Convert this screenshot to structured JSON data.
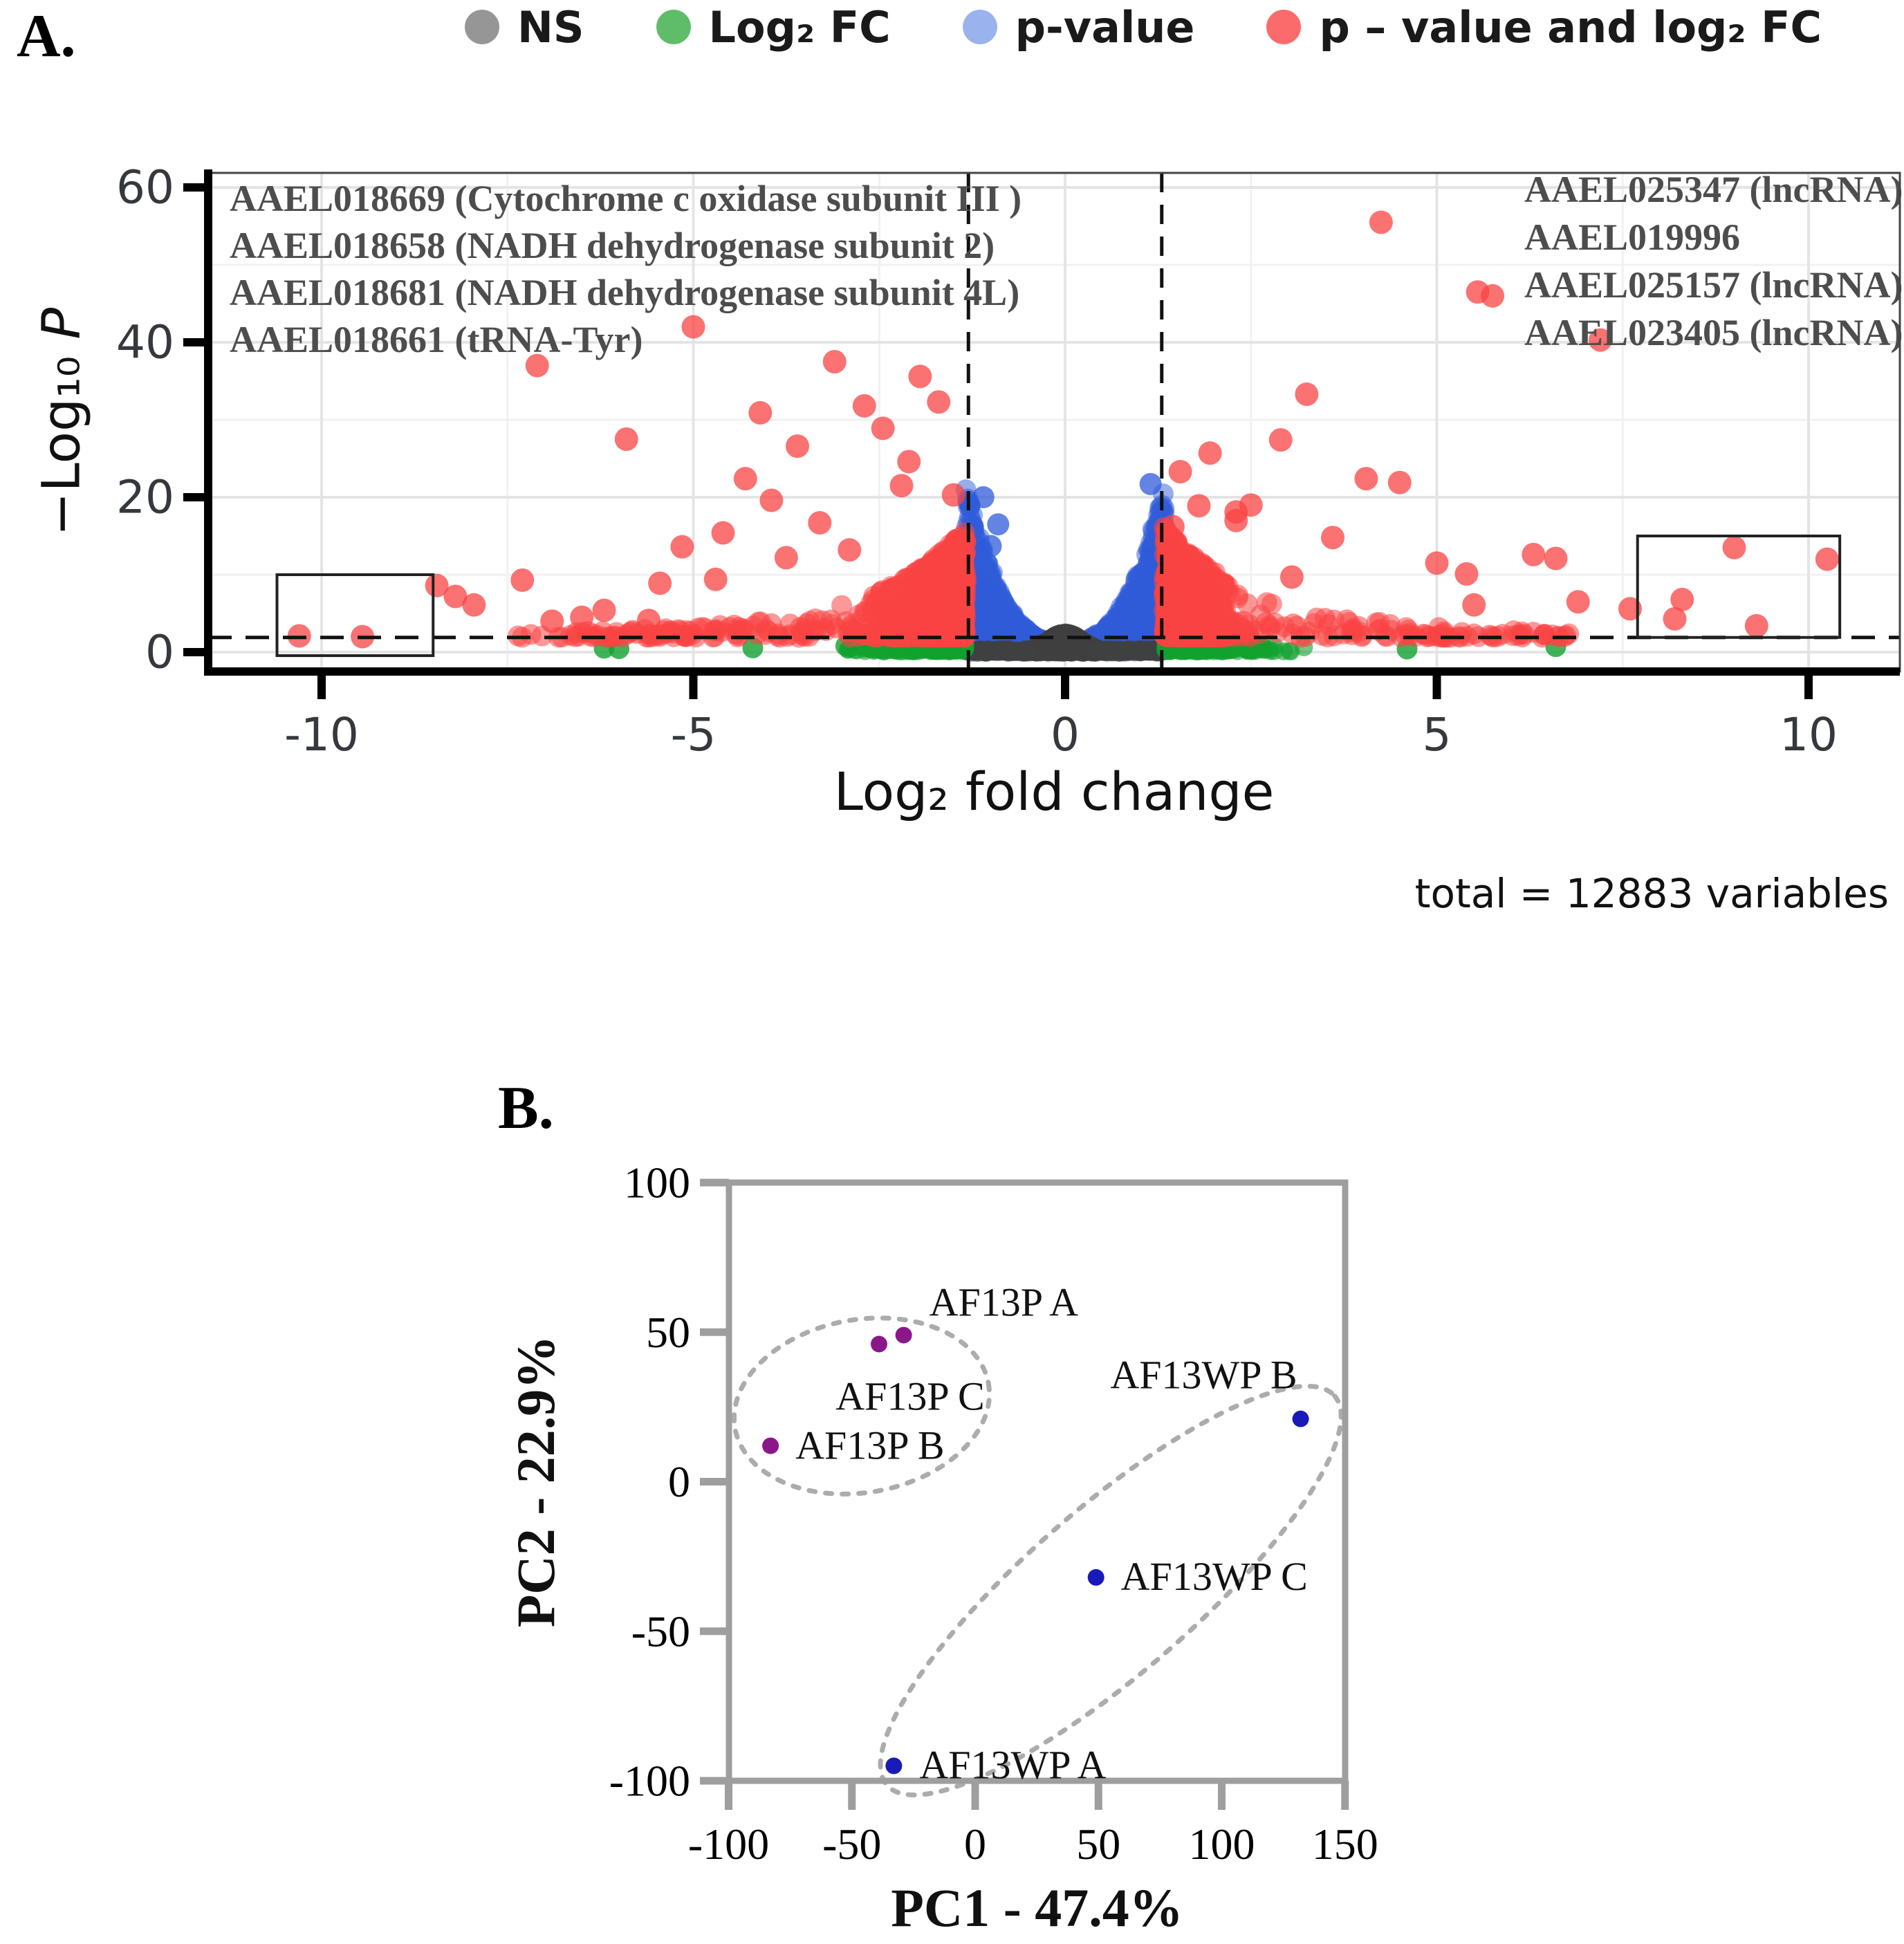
{
  "figure": {
    "background": "#ffffff"
  },
  "panel_a": {
    "label": "A."
  },
  "panel_b": {
    "label": "B."
  },
  "chart_data": [
    {
      "id": "volcano",
      "type": "scatter",
      "xlabel": "Log₂ fold change",
      "ylabel_main": "−Log₁₀ ",
      "ylabel_italic": "P",
      "caption": "total = 12883 variables",
      "xlim": [
        -11.5,
        11.2
      ],
      "ylim": [
        -2.5,
        61.9
      ],
      "x_ticks": [
        -10,
        -5,
        0,
        5,
        10
      ],
      "y_ticks": [
        0,
        20,
        40,
        60
      ],
      "grid": true,
      "legend": [
        {
          "label": "NS",
          "color": "#969696"
        },
        {
          "label": "Log₂ FC",
          "color": "#5FBD69"
        },
        {
          "label": "p-value",
          "color": "#9AB3EE"
        },
        {
          "label": "p – value and log₂ FC",
          "color": "#FB6B6B"
        }
      ],
      "colors": {
        "ns": "#3F3F3F",
        "log2fc": "#12A12F",
        "pvalue": "#2F5BDA",
        "both": "#F94343"
      },
      "thresholds": {
        "vlines": [
          -1.3,
          1.3
        ],
        "hline": 1.9,
        "style": "dashed"
      },
      "highlight_boxes": [
        {
          "x1": -10.6,
          "x2": -8.5,
          "y1": -0.45,
          "y2": 10
        },
        {
          "x1": 7.7,
          "x2": 10.42,
          "y1": 1.9,
          "y2": 15
        }
      ],
      "annotations_left": [
        "AAEL018669 (Cytochrome c oxidase subunit III )",
        "AAEL018658 (NADH dehydrogenase subunit 2)",
        "AAEL018681 (NADH dehydrogenase subunit 4L)",
        "AAEL018661 (tRNA-Tyr)"
      ],
      "annotations_right": [
        "AAEL025347 (lncRNA)",
        "AAEL019996",
        "AAEL025157 (lncRNA)",
        "AAEL023405 (lncRNA)"
      ],
      "outliers": {
        "both_left": [
          [
            -10.3,
            2.1
          ],
          [
            -9.45,
            2.0
          ],
          [
            -8.45,
            8.6
          ],
          [
            -8.2,
            7.2
          ],
          [
            -7.95,
            6.1
          ],
          [
            -7.3,
            9.3
          ],
          [
            -7.1,
            37.0
          ],
          [
            -6.9,
            4.0
          ],
          [
            -6.5,
            4.5
          ],
          [
            -6.2,
            5.4
          ],
          [
            -5.9,
            27.5
          ],
          [
            -5.6,
            4.1
          ],
          [
            -5.45,
            8.9
          ],
          [
            -5.15,
            13.6
          ],
          [
            -5.0,
            42.0
          ],
          [
            -4.7,
            9.4
          ],
          [
            -4.6,
            15.4
          ],
          [
            -4.3,
            22.4
          ],
          [
            -4.1,
            30.9
          ],
          [
            -3.95,
            19.6
          ],
          [
            -3.75,
            12.2
          ],
          [
            -3.6,
            26.6
          ],
          [
            -3.3,
            16.7
          ],
          [
            -3.1,
            37.5
          ],
          [
            -2.9,
            13.2
          ],
          [
            -2.7,
            31.8
          ],
          [
            -2.45,
            28.9
          ],
          [
            -2.2,
            21.5
          ],
          [
            -2.1,
            24.6
          ],
          [
            -1.95,
            35.6
          ],
          [
            -1.7,
            32.3
          ],
          [
            -1.5,
            20.3
          ]
        ],
        "both_right": [
          [
            1.45,
            16.2
          ],
          [
            1.55,
            23.3
          ],
          [
            1.8,
            18.9
          ],
          [
            1.95,
            25.7
          ],
          [
            2.3,
            18.1
          ],
          [
            2.3,
            17.0
          ],
          [
            2.5,
            19.0
          ],
          [
            2.9,
            27.4
          ],
          [
            3.05,
            9.7
          ],
          [
            3.25,
            33.3
          ],
          [
            3.6,
            14.8
          ],
          [
            4.05,
            22.4
          ],
          [
            4.25,
            55.5
          ],
          [
            4.5,
            21.9
          ],
          [
            5.0,
            11.5
          ],
          [
            5.4,
            10.1
          ],
          [
            5.5,
            6.1
          ],
          [
            5.55,
            46.5
          ],
          [
            5.75,
            46.0
          ],
          [
            6.3,
            12.6
          ],
          [
            6.6,
            12.1
          ],
          [
            6.9,
            6.5
          ],
          [
            7.2,
            40.3
          ],
          [
            7.6,
            5.6
          ],
          [
            8.2,
            4.3
          ],
          [
            8.3,
            6.8
          ],
          [
            9.0,
            13.5
          ],
          [
            9.3,
            3.4
          ],
          [
            10.25,
            12.0
          ]
        ],
        "pvalue": [
          [
            1.15,
            21.7
          ],
          [
            -1.1,
            20.0
          ],
          [
            -1.0,
            13.7
          ],
          [
            1.15,
            11.9
          ],
          [
            -0.9,
            16.5
          ]
        ],
        "log2fc": [
          [
            -6.2,
            0.5
          ],
          [
            -6.0,
            0.45
          ],
          [
            -4.2,
            0.55
          ],
          [
            -2.95,
            0.8
          ],
          [
            4.6,
            0.4
          ],
          [
            6.6,
            0.7
          ]
        ]
      },
      "cloud": {
        "seed": 42,
        "ns_count": 1000,
        "ns_band": 180,
        "p_per_side": 1500,
        "both_left": 1250,
        "both_right": 1000,
        "fc_per_side": 230
      }
    },
    {
      "id": "pca",
      "type": "scatter",
      "xlabel": "PC1 - 47.4%",
      "ylabel": "PC2 - 22.9%",
      "xlim": [
        -100,
        150
      ],
      "ylim": [
        -100,
        100
      ],
      "x_ticks": [
        -100,
        -50,
        0,
        50,
        100,
        150
      ],
      "y_ticks": [
        100,
        50,
        0,
        -50,
        -100
      ],
      "grid": false,
      "series": [
        {
          "name": "AF13P",
          "color": "#8B188B",
          "points": [
            {
              "label": "AF13P A",
              "x": -29,
              "y": 49,
              "anchor": "start",
              "dx": 37,
              "dy": -28
            },
            {
              "label": "AF13P C",
              "x": -39,
              "y": 46,
              "anchor": "middle",
              "dx": 45,
              "dy": 95
            },
            {
              "label": "AF13P B",
              "x": -83,
              "y": 12,
              "anchor": "start",
              "dx": 36,
              "dy": 19
            }
          ]
        },
        {
          "name": "AF13WP",
          "color": "#1A1AB8",
          "points": [
            {
              "label": "AF13WP B",
              "x": 132,
              "y": 21,
              "anchor": "end",
              "dx": -5,
              "dy": -44
            },
            {
              "label": "AF13WP C",
              "x": 49,
              "y": -32,
              "anchor": "start",
              "dx": 36,
              "dy": 18
            },
            {
              "label": "AF13WP A",
              "x": -33,
              "y": -95,
              "anchor": "start",
              "dx": 37,
              "dy": 18
            }
          ]
        }
      ],
      "ellipses": [
        {
          "cx": -46,
          "cy": 25.3,
          "rx": 52.2,
          "ry": 28.9,
          "rot": -10
        },
        {
          "cx": 55,
          "cy": -36.4,
          "rx": 120.3,
          "ry": 27.7,
          "rot": -41
        }
      ]
    }
  ]
}
